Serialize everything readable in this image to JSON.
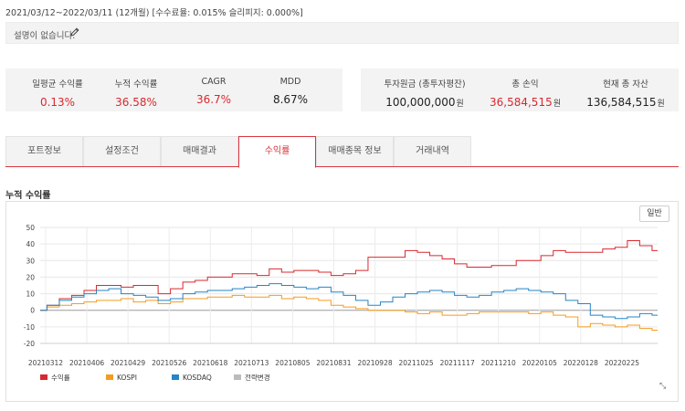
{
  "period_text": "2021/03/12~2022/03/11 (12개월) [수수료율: 0.015% 슬리피지: 0.000%]",
  "description": {
    "text": "설명이 없습니다.",
    "edit_icon": "pencil-icon"
  },
  "stats_left": [
    {
      "label": "일평균 수익률",
      "value": "0.13%",
      "tone": "red"
    },
    {
      "label": "누적 수익률",
      "value": "36.58%",
      "tone": "red"
    },
    {
      "label": "CAGR",
      "value": "36.7%",
      "tone": "red"
    },
    {
      "label": "MDD",
      "value": "8.67%",
      "tone": "black"
    }
  ],
  "stats_right": [
    {
      "label": "투자원금 (총투자평잔)",
      "value": "100,000,000",
      "unit": "원",
      "tone": "black"
    },
    {
      "label": "총 손익",
      "value": "36,584,515",
      "unit": "원",
      "tone": "red"
    },
    {
      "label": "현재 총 자산",
      "value": "136,584,515",
      "unit": "원",
      "tone": "black"
    }
  ],
  "tabs": [
    {
      "label": "포트정보",
      "active": false
    },
    {
      "label": "설정조건",
      "active": false
    },
    {
      "label": "매매결과",
      "active": false
    },
    {
      "label": "수익률",
      "active": true
    },
    {
      "label": "매매종목 정보",
      "active": false
    },
    {
      "label": "거래내역",
      "active": false
    }
  ],
  "section_title": "누적 수익률",
  "mode_button": "일반",
  "colors": {
    "accent": "#d9363e",
    "return": "#d9282f",
    "kospi": "#f39c1f",
    "kosdaq": "#2585c7",
    "strategy_change": "#bbbbbb"
  },
  "chart_data": {
    "type": "line",
    "title": "",
    "xlabel": "",
    "ylabel": "",
    "ylim": [
      -20,
      50
    ],
    "yticks": [
      -20,
      -10,
      0,
      10,
      20,
      30,
      40,
      50
    ],
    "grid": true,
    "legend_position": "bottom-left",
    "x_tick_labels": [
      "20210312",
      "20210406",
      "20210429",
      "20210526",
      "20210618",
      "20210713",
      "20210805",
      "20210831",
      "20210928",
      "20211025",
      "20211117",
      "20211210",
      "20220105",
      "20220128",
      "20220225"
    ],
    "series": [
      {
        "name": "수익률",
        "color": "#d9282f",
        "values": [
          0,
          3,
          7,
          9,
          12,
          15,
          15,
          14,
          15,
          15,
          10,
          13,
          17,
          18,
          20,
          20,
          22,
          22,
          21,
          25,
          23,
          24,
          24,
          23,
          21,
          22,
          24,
          32,
          32,
          32,
          36,
          35,
          33,
          31,
          28,
          26,
          26,
          27,
          27,
          30,
          30,
          33,
          36,
          35,
          35,
          35,
          37,
          38,
          42,
          39,
          36
        ]
      },
      {
        "name": "KOSPI",
        "color": "#f39c1f",
        "values": [
          0,
          2,
          3,
          4,
          5,
          6,
          6,
          7,
          5,
          6,
          4,
          5,
          7,
          7,
          8,
          8,
          9,
          8,
          8,
          9,
          7,
          8,
          7,
          6,
          3,
          2,
          1,
          0,
          0,
          0,
          -1,
          -2,
          -1,
          -3,
          -3,
          -2,
          -1,
          -1,
          -1,
          -1,
          -2,
          -1,
          -3,
          -4,
          -10,
          -8,
          -9,
          -10,
          -9,
          -11,
          -12
        ]
      },
      {
        "name": "KOSDAQ",
        "color": "#2585c7",
        "values": [
          0,
          3,
          6,
          8,
          10,
          12,
          13,
          10,
          9,
          8,
          6,
          7,
          10,
          11,
          12,
          12,
          13,
          14,
          15,
          16,
          15,
          14,
          13,
          14,
          11,
          9,
          6,
          3,
          5,
          8,
          10,
          11,
          12,
          11,
          9,
          8,
          9,
          11,
          12,
          13,
          12,
          11,
          10,
          6,
          4,
          -3,
          -4,
          -5,
          -4,
          -2,
          -3
        ]
      },
      {
        "name": "전략변경",
        "color": "#bbbbbb",
        "values": []
      }
    ]
  }
}
